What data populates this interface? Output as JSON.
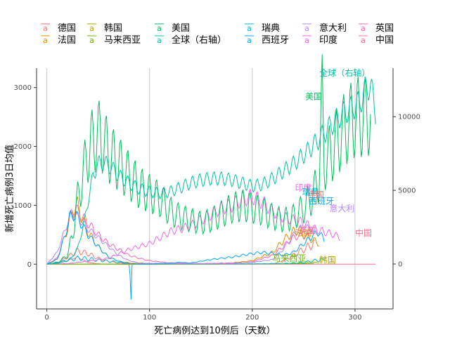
{
  "chart_data": {
    "type": "line",
    "xlabel": "死亡病例达到10例后（天数）",
    "ylabel": "新增死亡病例3日均值",
    "xlim": [
      -10,
      337
    ],
    "ylim": [
      -760,
      3330
    ],
    "y2lim": [
      -3050,
      13300
    ],
    "x_ticks": [
      0,
      100,
      200,
      300
    ],
    "y_ticks": [
      0,
      1000,
      2000,
      3000
    ],
    "y2_ticks": [
      0,
      5000,
      10000
    ],
    "grid": "vertical-major",
    "legend_position": "top",
    "legend": [
      {
        "name": "德国",
        "color": "#F8766D"
      },
      {
        "name": "法国",
        "color": "#DB8E00"
      },
      {
        "name": "韩国",
        "color": "#AEA200"
      },
      {
        "name": "马来西亚",
        "color": "#64B200"
      },
      {
        "name": "美国",
        "color": "#00BD5C"
      },
      {
        "name": "全球（右轴）",
        "color": "#00C1A7"
      },
      {
        "name": "瑞典",
        "color": "#00BADE"
      },
      {
        "name": "西班牙",
        "color": "#00A6FF"
      },
      {
        "name": "意大利",
        "color": "#B385FF"
      },
      {
        "name": "印度",
        "color": "#EF67EB"
      },
      {
        "name": "英国",
        "color": "#FF63B6"
      },
      {
        "name": "中国",
        "color": "#FF6C91"
      }
    ],
    "legend_key_glyph": "a",
    "series": [
      {
        "name": "全球（右轴）",
        "axis": "right",
        "color": "#00C1A7",
        "weekly_amp": 0.08,
        "points": [
          [
            0,
            0
          ],
          [
            10,
            30
          ],
          [
            20,
            200
          ],
          [
            25,
            500
          ],
          [
            30,
            1100
          ],
          [
            35,
            2400
          ],
          [
            40,
            4200
          ],
          [
            45,
            6000
          ],
          [
            50,
            6800
          ],
          [
            55,
            6900
          ],
          [
            60,
            6700
          ],
          [
            65,
            6400
          ],
          [
            70,
            6000
          ],
          [
            80,
            5500
          ],
          [
            90,
            5100
          ],
          [
            100,
            4900
          ],
          [
            110,
            4800
          ],
          [
            120,
            4900
          ],
          [
            130,
            5200
          ],
          [
            140,
            5500
          ],
          [
            150,
            5700
          ],
          [
            160,
            5800
          ],
          [
            170,
            5800
          ],
          [
            180,
            5700
          ],
          [
            190,
            5500
          ],
          [
            200,
            5300
          ],
          [
            210,
            5400
          ],
          [
            220,
            5800
          ],
          [
            230,
            6300
          ],
          [
            240,
            6800
          ],
          [
            250,
            7400
          ],
          [
            260,
            8100
          ],
          [
            270,
            8900
          ],
          [
            280,
            9700
          ],
          [
            290,
            10300
          ],
          [
            300,
            10700
          ],
          [
            305,
            11000
          ],
          [
            310,
            11800
          ],
          [
            315,
            12200
          ],
          [
            320,
            10300
          ]
        ]
      },
      {
        "name": "美国",
        "axis": "left",
        "color": "#00BD5C",
        "weekly_amp": 0.28,
        "points": [
          [
            0,
            0
          ],
          [
            10,
            20
          ],
          [
            20,
            150
          ],
          [
            25,
            500
          ],
          [
            30,
            1100
          ],
          [
            35,
            1500
          ],
          [
            40,
            1900
          ],
          [
            45,
            2100
          ],
          [
            50,
            2200
          ],
          [
            55,
            2100
          ],
          [
            60,
            1900
          ],
          [
            70,
            1700
          ],
          [
            80,
            1500
          ],
          [
            90,
            1300
          ],
          [
            100,
            1200
          ],
          [
            110,
            1100
          ],
          [
            120,
            900
          ],
          [
            130,
            800
          ],
          [
            140,
            750
          ],
          [
            150,
            700
          ],
          [
            160,
            750
          ],
          [
            170,
            850
          ],
          [
            180,
            950
          ],
          [
            190,
            1000
          ],
          [
            200,
            950
          ],
          [
            210,
            900
          ],
          [
            220,
            800
          ],
          [
            230,
            750
          ],
          [
            240,
            800
          ],
          [
            250,
            950
          ],
          [
            260,
            1200
          ],
          [
            265,
            1500
          ],
          [
            268,
            2800
          ],
          [
            270,
            1700
          ],
          [
            280,
            2000
          ],
          [
            290,
            2300
          ],
          [
            300,
            2500
          ],
          [
            310,
            2500
          ],
          [
            315,
            2550
          ]
        ]
      },
      {
        "name": "印度",
        "axis": "left",
        "color": "#EF67EB",
        "weekly_amp": 0.12,
        "points": [
          [
            0,
            0
          ],
          [
            20,
            10
          ],
          [
            40,
            50
          ],
          [
            60,
            100
          ],
          [
            80,
            250
          ],
          [
            100,
            350
          ],
          [
            120,
            550
          ],
          [
            140,
            650
          ],
          [
            150,
            750
          ],
          [
            160,
            850
          ],
          [
            170,
            950
          ],
          [
            180,
            1000
          ],
          [
            190,
            1100
          ],
          [
            200,
            1150
          ],
          [
            210,
            1050
          ],
          [
            220,
            900
          ],
          [
            230,
            800
          ],
          [
            240,
            750
          ],
          [
            250,
            700
          ],
          [
            260,
            600
          ],
          [
            270,
            550
          ],
          [
            280,
            500
          ],
          [
            285,
            450
          ]
        ]
      },
      {
        "name": "西班牙",
        "axis": "left",
        "color": "#00A6FF",
        "weekly_amp": 0.12,
        "points": [
          [
            0,
            0
          ],
          [
            10,
            80
          ],
          [
            18,
            500
          ],
          [
            22,
            800
          ],
          [
            28,
            850
          ],
          [
            33,
            700
          ],
          [
            40,
            500
          ],
          [
            50,
            300
          ],
          [
            60,
            120
          ],
          [
            70,
            50
          ],
          [
            80,
            10
          ],
          [
            90,
            0
          ],
          [
            100,
            0
          ],
          [
            110,
            10
          ],
          [
            120,
            20
          ],
          [
            130,
            30
          ],
          [
            140,
            20
          ],
          [
            150,
            50
          ],
          [
            160,
            80
          ],
          [
            170,
            100
          ],
          [
            180,
            120
          ],
          [
            190,
            150
          ],
          [
            200,
            180
          ],
          [
            210,
            200
          ],
          [
            220,
            180
          ],
          [
            230,
            150
          ],
          [
            240,
            200
          ],
          [
            250,
            350
          ],
          [
            260,
            500
          ],
          [
            265,
            550
          ],
          [
            270,
            400
          ]
        ]
      },
      {
        "name": "意大利",
        "axis": "left",
        "color": "#B385FF",
        "weekly_amp": 0.1,
        "points": [
          [
            0,
            0
          ],
          [
            10,
            200
          ],
          [
            20,
            700
          ],
          [
            25,
            850
          ],
          [
            30,
            800
          ],
          [
            40,
            600
          ],
          [
            50,
            450
          ],
          [
            60,
            300
          ],
          [
            70,
            150
          ],
          [
            80,
            60
          ],
          [
            90,
            20
          ],
          [
            100,
            15
          ],
          [
            120,
            10
          ],
          [
            150,
            10
          ],
          [
            180,
            20
          ],
          [
            200,
            30
          ],
          [
            220,
            80
          ],
          [
            230,
            250
          ],
          [
            240,
            500
          ],
          [
            250,
            650
          ],
          [
            255,
            600
          ],
          [
            260,
            550
          ]
        ]
      },
      {
        "name": "法国",
        "axis": "left",
        "color": "#DB8E00",
        "weekly_amp": 0.15,
        "points": [
          [
            0,
            0
          ],
          [
            10,
            80
          ],
          [
            20,
            600
          ],
          [
            25,
            900
          ],
          [
            30,
            1000
          ],
          [
            35,
            750
          ],
          [
            40,
            550
          ],
          [
            50,
            300
          ],
          [
            60,
            120
          ],
          [
            70,
            50
          ],
          [
            80,
            20
          ],
          [
            90,
            10
          ],
          [
            120,
            10
          ],
          [
            150,
            10
          ],
          [
            180,
            20
          ],
          [
            200,
            60
          ],
          [
            220,
            200
          ],
          [
            230,
            400
          ],
          [
            240,
            550
          ],
          [
            245,
            600
          ],
          [
            250,
            500
          ],
          [
            260,
            400
          ],
          [
            265,
            350
          ]
        ]
      },
      {
        "name": "英国",
        "axis": "left",
        "color": "#FF63B6",
        "weekly_amp": 0.12,
        "points": [
          [
            0,
            0
          ],
          [
            10,
            100
          ],
          [
            20,
            600
          ],
          [
            25,
            950
          ],
          [
            30,
            900
          ],
          [
            40,
            700
          ],
          [
            50,
            500
          ],
          [
            60,
            350
          ],
          [
            70,
            250
          ],
          [
            80,
            150
          ],
          [
            90,
            100
          ],
          [
            100,
            60
          ],
          [
            120,
            20
          ],
          [
            150,
            10
          ],
          [
            180,
            10
          ],
          [
            200,
            40
          ],
          [
            220,
            150
          ],
          [
            230,
            300
          ],
          [
            240,
            450
          ],
          [
            250,
            500
          ],
          [
            255,
            450
          ]
        ]
      },
      {
        "name": "瑞典",
        "axis": "left",
        "color": "#00BADE",
        "weekly_amp": 0.4,
        "points": [
          [
            0,
            0
          ],
          [
            10,
            30
          ],
          [
            20,
            70
          ],
          [
            30,
            100
          ],
          [
            40,
            90
          ],
          [
            50,
            70
          ],
          [
            60,
            50
          ],
          [
            70,
            30
          ],
          [
            80,
            20
          ],
          [
            85,
            5
          ],
          [
            100,
            5
          ],
          [
            150,
            5
          ],
          [
            200,
            5
          ],
          [
            230,
            10
          ],
          [
            250,
            30
          ],
          [
            260,
            60
          ],
          [
            270,
            80
          ]
        ]
      },
      {
        "name": "德国",
        "axis": "left",
        "color": "#F8766D",
        "weekly_amp": 0.25,
        "points": [
          [
            0,
            0
          ],
          [
            10,
            30
          ],
          [
            20,
            120
          ],
          [
            30,
            220
          ],
          [
            40,
            180
          ],
          [
            50,
            100
          ],
          [
            60,
            50
          ],
          [
            70,
            20
          ],
          [
            80,
            10
          ],
          [
            100,
            5
          ],
          [
            150,
            5
          ],
          [
            200,
            5
          ],
          [
            220,
            10
          ],
          [
            230,
            50
          ],
          [
            240,
            150
          ],
          [
            250,
            250
          ],
          [
            260,
            350
          ]
        ]
      },
      {
        "name": "马来西亚",
        "axis": "left",
        "color": "#64B200",
        "weekly_amp": 0.1,
        "points": [
          [
            0,
            0
          ],
          [
            100,
            0
          ],
          [
            200,
            2
          ],
          [
            230,
            5
          ],
          [
            250,
            10
          ],
          [
            260,
            8
          ]
        ]
      },
      {
        "name": "韩国",
        "axis": "left",
        "color": "#AEA200",
        "weekly_amp": 0.1,
        "points": [
          [
            0,
            0
          ],
          [
            50,
            3
          ],
          [
            100,
            1
          ],
          [
            150,
            2
          ],
          [
            200,
            4
          ],
          [
            230,
            8
          ],
          [
            240,
            15
          ],
          [
            250,
            25
          ],
          [
            260,
            30
          ],
          [
            265,
            25
          ]
        ]
      },
      {
        "name": "中国",
        "axis": "left",
        "color": "#FF6C91",
        "weekly_amp": 0.1,
        "points": [
          [
            0,
            0
          ],
          [
            20,
            60
          ],
          [
            30,
            120
          ],
          [
            40,
            30
          ],
          [
            50,
            5
          ],
          [
            60,
            2
          ],
          [
            100,
            0
          ],
          [
            200,
            0
          ],
          [
            300,
            0
          ],
          [
            320,
            0
          ]
        ]
      }
    ],
    "series_labels": [
      {
        "text": "全球（右轴）",
        "series": "全球（右轴）",
        "x": 290,
        "y": 3200,
        "align": "middle"
      },
      {
        "text": "美国",
        "series": "美国",
        "x": 268,
        "y": 2800,
        "align": "end"
      },
      {
        "text": "印度",
        "series": "印度",
        "x": 258,
        "y": 1250,
        "align": "end"
      },
      {
        "text": "瑞典",
        "series": "瑞典",
        "x": 265,
        "y": 1180,
        "align": "end"
      },
      {
        "text": "德国",
        "series": "德国",
        "x": 270,
        "y": 1130,
        "align": "end"
      },
      {
        "text": "西班牙",
        "series": "西班牙",
        "x": 255,
        "y": 1020,
        "align": "start"
      },
      {
        "text": "意大利",
        "series": "意大利",
        "x": 275,
        "y": 900,
        "align": "start"
      },
      {
        "text": "英国",
        "series": "英国",
        "x": 262,
        "y": 520,
        "align": "end"
      },
      {
        "text": "法国",
        "series": "法国",
        "x": 258,
        "y": 480,
        "align": "end"
      },
      {
        "text": "中国",
        "series": "中国",
        "x": 300,
        "y": 480,
        "align": "start"
      },
      {
        "text": "马来西亚",
        "series": "马来西亚",
        "x": 236,
        "y": 50,
        "align": "middle"
      },
      {
        "text": "韩国",
        "series": "韩国",
        "x": 265,
        "y": 20,
        "align": "start"
      }
    ]
  }
}
